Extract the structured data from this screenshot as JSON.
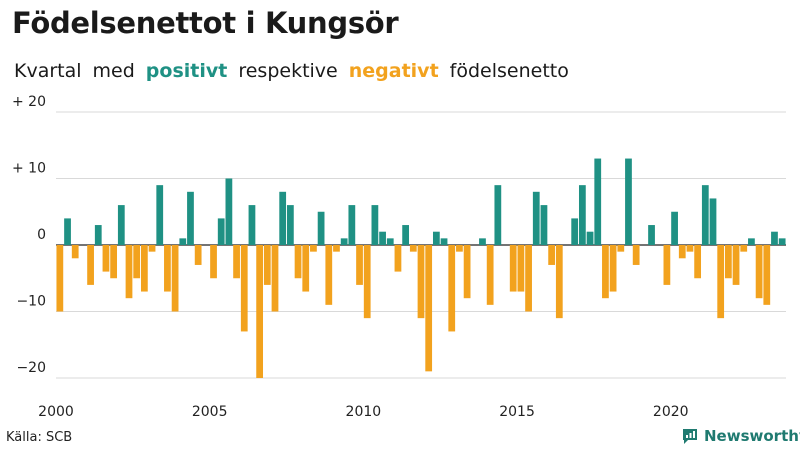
{
  "title": "Födelsenettot i Kungsör",
  "subtitle": {
    "part1": "Kvartal",
    "part2": "med",
    "positive": "positivt",
    "part3": "respektive",
    "negative": "negativt",
    "part4": "födelsenetto"
  },
  "source": "Källa: SCB",
  "brand": "Newsworthy",
  "colors": {
    "positive": "#1f9184",
    "negative": "#f2a21e",
    "grid": "#d9d9d9",
    "zero": "#222222"
  },
  "chart_data": {
    "type": "bar",
    "title": "Födelsenettot i Kungsör",
    "xlabel": "",
    "ylabel": "",
    "ylim": [
      -20,
      20
    ],
    "yticks": [
      {
        "value": 20,
        "label": "+ 20"
      },
      {
        "value": 10,
        "label": "+ 10"
      },
      {
        "value": 0,
        "label": "0"
      },
      {
        "value": -10,
        "label": "−10"
      },
      {
        "value": -20,
        "label": "−20"
      }
    ],
    "xticks": [
      "2000",
      "2005",
      "2010",
      "2015",
      "2020"
    ],
    "start_year": 2000,
    "grid": true,
    "values": [
      -10,
      4,
      -2,
      0,
      -6,
      3,
      -4,
      -5,
      6,
      -8,
      -5,
      -7,
      -1,
      9,
      -7,
      -10,
      1,
      8,
      -3,
      0,
      -5,
      4,
      10,
      -5,
      -13,
      6,
      -20,
      -6,
      -10,
      8,
      6,
      -5,
      -7,
      -1,
      5,
      -9,
      -1,
      1,
      6,
      -6,
      -11,
      6,
      2,
      1,
      -4,
      3,
      -1,
      -11,
      -19,
      2,
      1,
      -13,
      -1,
      -8,
      0,
      1,
      -9,
      9,
      0,
      -7,
      -7,
      -10,
      8,
      6,
      -3,
      -11,
      0,
      4,
      9,
      2,
      13,
      -8,
      -7,
      -1,
      13,
      -3,
      0,
      3,
      0,
      -6,
      5,
      -2,
      -1,
      -5,
      9,
      7,
      -11,
      -5,
      -6,
      -1,
      1,
      -8,
      -9,
      2,
      1
    ]
  }
}
